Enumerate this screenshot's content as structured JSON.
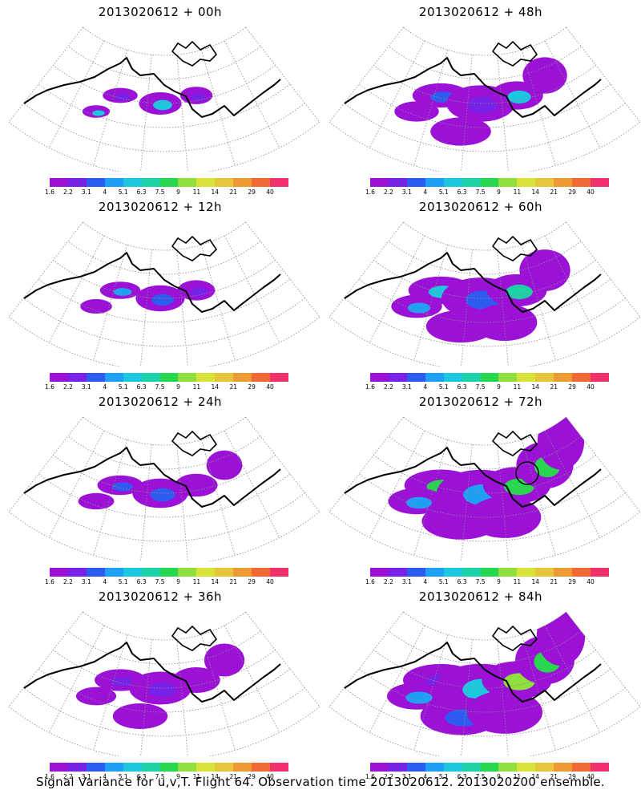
{
  "panels": [
    {
      "title": "2013020612  + 00h",
      "spread": 0.15,
      "peak": 5
    },
    {
      "title": "2013020612  + 48h",
      "spread": 0.55,
      "peak": 3
    },
    {
      "title": "2013020612  + 12h",
      "spread": 0.25,
      "peak": 3
    },
    {
      "title": "2013020612  + 60h",
      "spread": 0.7,
      "peak": 4
    },
    {
      "title": "2013020612  + 24h",
      "spread": 0.35,
      "peak": 2
    },
    {
      "title": "2013020612  + 72h",
      "spread": 0.85,
      "peak": 5
    },
    {
      "title": "2013020612  + 36h",
      "spread": 0.45,
      "peak": 2
    },
    {
      "title": "2013020612  + 84h",
      "spread": 0.9,
      "peak": 6
    }
  ],
  "colorbar": {
    "labels": [
      "1.6",
      "2.2",
      "3.1",
      "4",
      "5.1",
      "6.3",
      "7.5",
      "9",
      "11",
      "14",
      "21",
      "29",
      "40"
    ],
    "colors": [
      "#9b11d6",
      "#7722e6",
      "#2e5cf0",
      "#1fa0f5",
      "#1cc8e0",
      "#1cd2a6",
      "#27d74d",
      "#8fe03c",
      "#d7e33a",
      "#e6c53a",
      "#ee9a33",
      "#f26a33",
      "#f0316b"
    ]
  },
  "caption": "Signal Variance for u,v,T. Flight 64. Observation time 2013020612. 2013020200 ensemble."
}
